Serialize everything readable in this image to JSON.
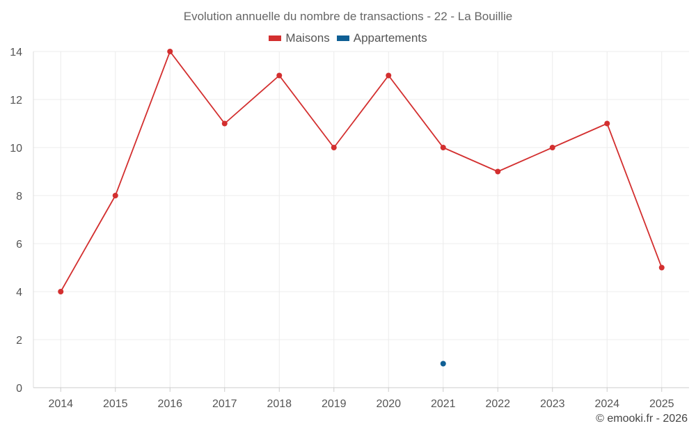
{
  "chart_data": {
    "type": "line",
    "title": "Evolution annuelle du nombre de transactions - 22 - La Bouillie",
    "categories": [
      "2014",
      "2015",
      "2016",
      "2017",
      "2018",
      "2019",
      "2020",
      "2021",
      "2022",
      "2023",
      "2024",
      "2025"
    ],
    "series": [
      {
        "name": "Maisons",
        "color": "#d32f2f",
        "values": [
          4,
          8,
          14,
          11,
          13,
          10,
          13,
          10,
          9,
          10,
          11,
          5
        ]
      },
      {
        "name": "Appartements",
        "color": "#0f5f94",
        "values": [
          null,
          null,
          null,
          null,
          null,
          null,
          null,
          1,
          null,
          null,
          null,
          null
        ]
      }
    ],
    "ylim": [
      0,
      14
    ],
    "yticks": [
      0,
      2,
      4,
      6,
      8,
      10,
      12,
      14
    ],
    "xlabel": "",
    "ylabel": "",
    "grid": true,
    "legend_position": "top-center",
    "credit": "© emooki.fr - 2026"
  }
}
